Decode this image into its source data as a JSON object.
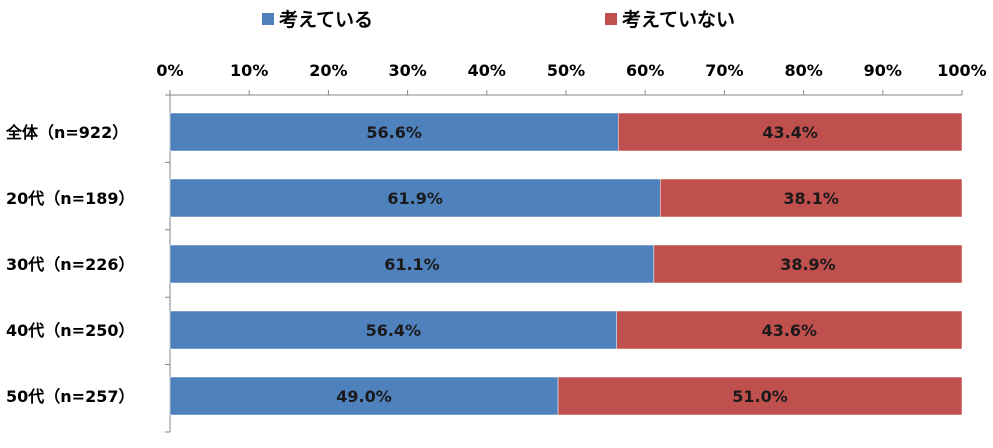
{
  "chart_data": {
    "type": "bar",
    "orientation": "horizontal",
    "stacked": true,
    "percent_stacked": true,
    "title": "",
    "xlabel": "",
    "ylabel": "",
    "xlim": [
      0,
      100
    ],
    "x_ticks": [
      "0%",
      "10%",
      "20%",
      "30%",
      "40%",
      "50%",
      "60%",
      "70%",
      "80%",
      "90%",
      "100%"
    ],
    "categories": [
      "全体（n=922）",
      "20代（n=189）",
      "30代（n=226）",
      "40代（n=250）",
      "50代（n=257）"
    ],
    "series": [
      {
        "name": "考えている",
        "color": "#4F81BD",
        "values": [
          56.6,
          61.9,
          61.1,
          56.4,
          49.0
        ],
        "labels": [
          "56.6%",
          "61.9%",
          "61.1%",
          "56.4%",
          "49.0%"
        ]
      },
      {
        "name": "考えていない",
        "color": "#C0504D",
        "values": [
          43.4,
          38.1,
          38.9,
          43.6,
          51.0
        ],
        "labels": [
          "43.4%",
          "38.1%",
          "38.9%",
          "43.6%",
          "51.0%"
        ]
      }
    ],
    "legend": {
      "position": "top"
    },
    "grid": false
  }
}
